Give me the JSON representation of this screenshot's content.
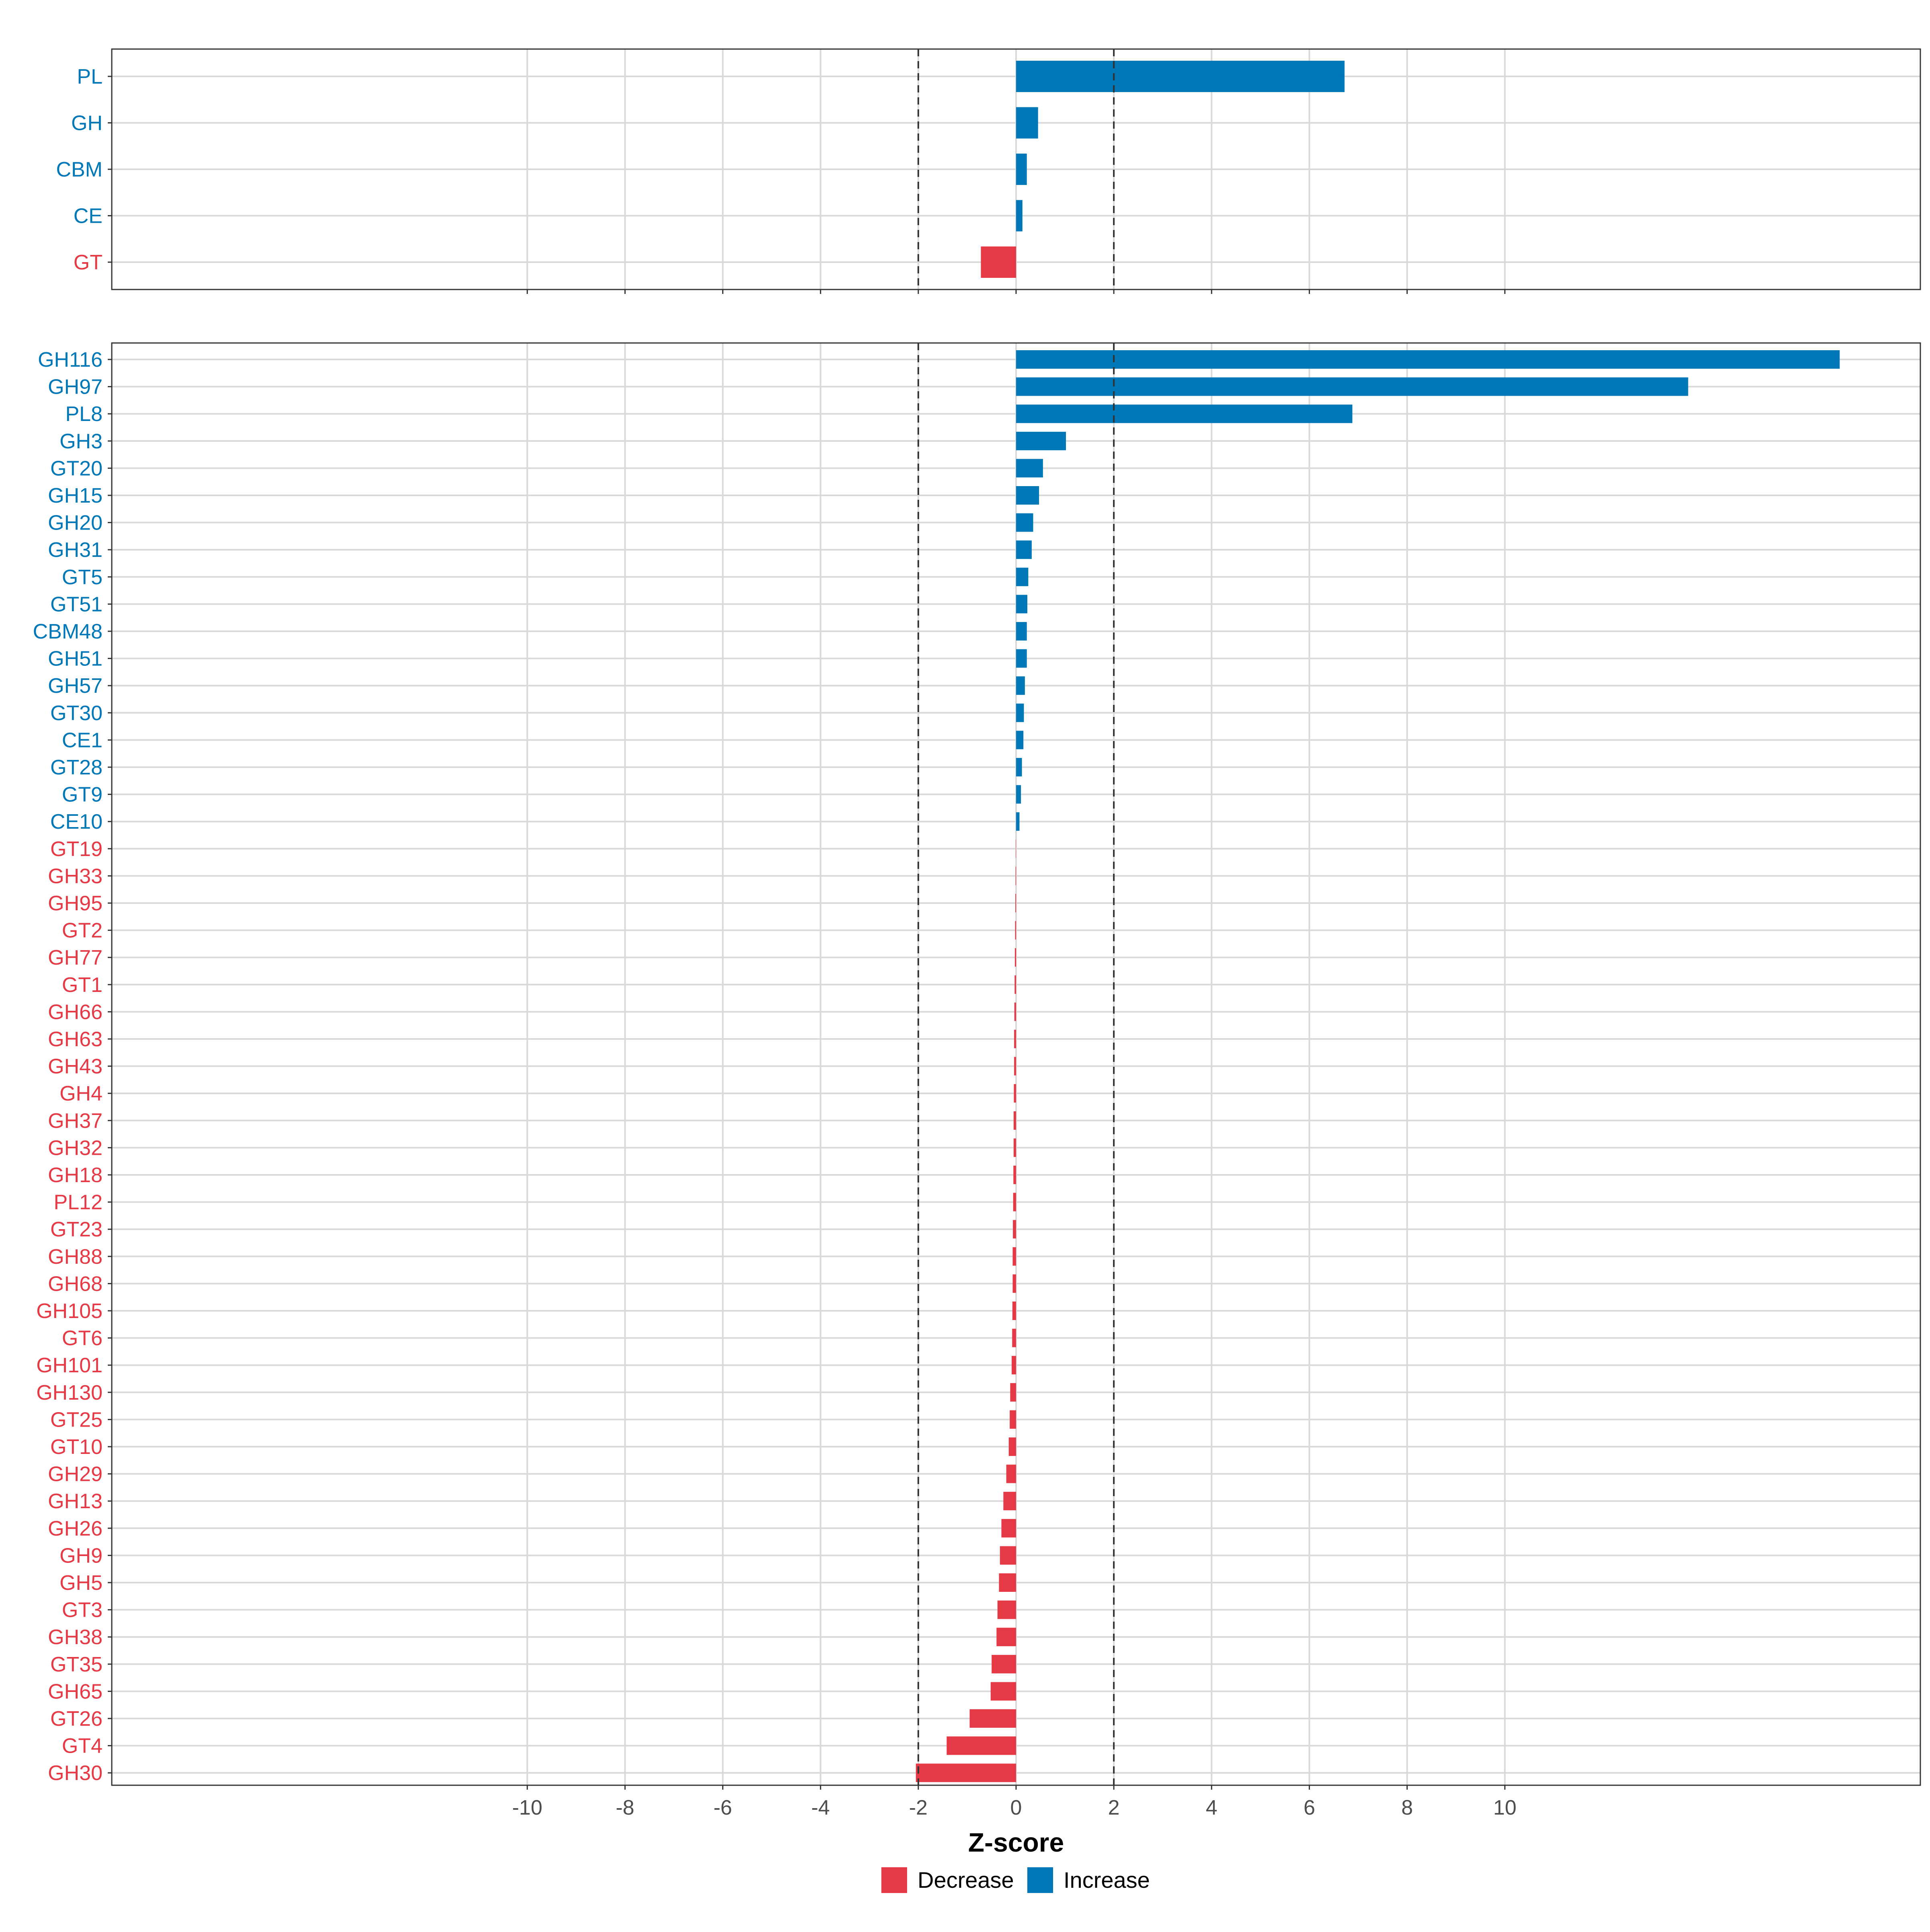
{
  "chart_data": {
    "type": "bar",
    "orientation": "horizontal",
    "xlabel": "Z-score",
    "xlim": [
      -18.5,
      18.5
    ],
    "x_ticks": [
      -10,
      -8,
      -6,
      -4,
      -2,
      0,
      2,
      4,
      6,
      8,
      10
    ],
    "x_tick_labels": [
      "-10",
      "-8",
      "-6",
      "-4",
      "-2",
      "0",
      "2",
      "4",
      "6",
      "8",
      "10"
    ],
    "reference_lines": [
      -2,
      2
    ],
    "grid": true,
    "legend": {
      "placement": "bottom",
      "entries": [
        {
          "label": "Decrease",
          "color": "#E63946"
        },
        {
          "label": "Increase",
          "color": "#0077B6"
        }
      ]
    },
    "colors": {
      "Increase": "#0077B6",
      "Decrease": "#E63946"
    },
    "panels": [
      {
        "categories": [
          "PL",
          "GH",
          "CBM",
          "CE",
          "GT"
        ],
        "values": [
          6.72,
          0.45,
          0.22,
          0.13,
          -0.72
        ],
        "direction": [
          "Increase",
          "Increase",
          "Increase",
          "Increase",
          "Decrease"
        ]
      },
      {
        "categories": [
          "GH116",
          "GH97",
          "PL8",
          "GH3",
          "GT20",
          "GH15",
          "GH20",
          "GH31",
          "GT5",
          "GT51",
          "CBM48",
          "GH51",
          "GH57",
          "GT30",
          "CE1",
          "GT28",
          "GT9",
          "CE10",
          "GT19",
          "GH33",
          "GH95",
          "GT2",
          "GH77",
          "GT1",
          "GH66",
          "GH63",
          "GH43",
          "GH4",
          "GH37",
          "GH32",
          "GH18",
          "PL12",
          "GT23",
          "GH88",
          "GH68",
          "GH105",
          "GT6",
          "GH101",
          "GH130",
          "GT25",
          "GT10",
          "GH29",
          "GH13",
          "GH26",
          "GH9",
          "GH5",
          "GT3",
          "GH38",
          "GT35",
          "GH65",
          "GT26",
          "GT4",
          "GH30"
        ],
        "values": [
          16.85,
          13.75,
          6.88,
          1.02,
          0.55,
          0.47,
          0.35,
          0.32,
          0.25,
          0.23,
          0.22,
          0.22,
          0.18,
          0.16,
          0.15,
          0.12,
          0.1,
          0.07,
          -0.005,
          -0.01,
          -0.015,
          -0.02,
          -0.025,
          -0.03,
          -0.035,
          -0.04,
          -0.04,
          -0.045,
          -0.05,
          -0.05,
          -0.055,
          -0.06,
          -0.065,
          -0.07,
          -0.07,
          -0.075,
          -0.08,
          -0.09,
          -0.12,
          -0.13,
          -0.15,
          -0.2,
          -0.26,
          -0.3,
          -0.33,
          -0.35,
          -0.38,
          -0.4,
          -0.5,
          -0.52,
          -0.95,
          -1.42,
          -2.05
        ],
        "direction": [
          "Increase",
          "Increase",
          "Increase",
          "Increase",
          "Increase",
          "Increase",
          "Increase",
          "Increase",
          "Increase",
          "Increase",
          "Increase",
          "Increase",
          "Increase",
          "Increase",
          "Increase",
          "Increase",
          "Increase",
          "Increase",
          "Decrease",
          "Decrease",
          "Decrease",
          "Decrease",
          "Decrease",
          "Decrease",
          "Decrease",
          "Decrease",
          "Decrease",
          "Decrease",
          "Decrease",
          "Decrease",
          "Decrease",
          "Decrease",
          "Decrease",
          "Decrease",
          "Decrease",
          "Decrease",
          "Decrease",
          "Decrease",
          "Decrease",
          "Decrease",
          "Decrease",
          "Decrease",
          "Decrease",
          "Decrease",
          "Decrease",
          "Decrease",
          "Decrease",
          "Decrease",
          "Decrease",
          "Decrease",
          "Decrease",
          "Decrease",
          "Decrease"
        ]
      }
    ]
  }
}
